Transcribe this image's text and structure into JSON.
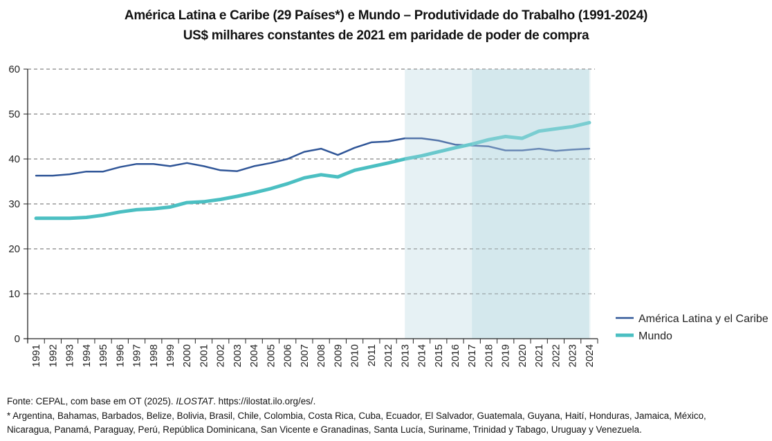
{
  "chart_data": {
    "type": "line",
    "title": "América Latina e Caribe (29 Países*) e Mundo – Produtividade do Trabalho (1991-2024)",
    "subtitle": "US$ milhares constantes de 2021 em paridade de poder de compra",
    "xlabel": "",
    "ylabel": "",
    "ylim": [
      0,
      60
    ],
    "yticks": [
      0,
      10,
      20,
      30,
      40,
      50,
      60
    ],
    "grid": "horizontal-dashed",
    "legend_position": "right",
    "categories": [
      "1991",
      "1992",
      "1993",
      "1994",
      "1995",
      "1996",
      "1997",
      "1998",
      "1999",
      "2000",
      "2001",
      "2002",
      "2003",
      "2004",
      "2005",
      "2006",
      "2007",
      "2008",
      "2009",
      "2010",
      "2011",
      "2012",
      "2013",
      "2014",
      "2015",
      "2016",
      "2017",
      "2018",
      "2019",
      "2020",
      "2021",
      "2022",
      "2023",
      "2024"
    ],
    "series": [
      {
        "name": "América Latina y el Caribe",
        "color": "#2f5597",
        "values": [
          36.3,
          36.3,
          36.6,
          37.2,
          37.2,
          38.2,
          38.9,
          38.9,
          38.4,
          39.1,
          38.4,
          37.5,
          37.3,
          38.4,
          39.1,
          40.0,
          41.6,
          42.3,
          40.9,
          42.5,
          43.7,
          43.9,
          44.6,
          44.6,
          44.1,
          43.2,
          43.0,
          42.8,
          41.9,
          41.9,
          42.3,
          41.8,
          42.1,
          42.3
        ]
      },
      {
        "name": "Mundo",
        "color": "#4bbfc2",
        "values": [
          26.8,
          26.8,
          26.8,
          27.0,
          27.5,
          28.2,
          28.7,
          28.9,
          29.3,
          30.3,
          30.5,
          31.0,
          31.7,
          32.5,
          33.4,
          34.5,
          35.8,
          36.5,
          36.0,
          37.5,
          38.3,
          39.1,
          40.0,
          40.7,
          41.6,
          42.5,
          43.3,
          44.3,
          45.0,
          44.6,
          46.2,
          46.7,
          47.2,
          48.1
        ]
      }
    ],
    "shaded_periods": [
      {
        "from": "2013",
        "to": "2016",
        "color": "#e6f2f4"
      },
      {
        "from": "2017",
        "to": "2024",
        "color": "#d5e9ed"
      }
    ]
  },
  "footer": {
    "source_prefix": "Fonte: CEPAL, com base em OT (2025). ",
    "source_italic": "ILOSTAT",
    "source_suffix": ". https://ilostat.ilo.org/es/.",
    "note_line1": "* Argentina, Bahamas, Barbados, Belize, Bolivia, Brasil, Chile, Colombia, Costa Rica, Cuba, Ecuador, El Salvador, Guatemala, Guyana, Haití, Honduras, Jamaica, México,",
    "note_line2": "Nicaragua, Panamá, Paraguay, Perú, República Dominicana, San Vicente e Granadinas, Santa Lucía, Suriname, Trinidad y Tabago, Uruguay y Venezuela."
  }
}
